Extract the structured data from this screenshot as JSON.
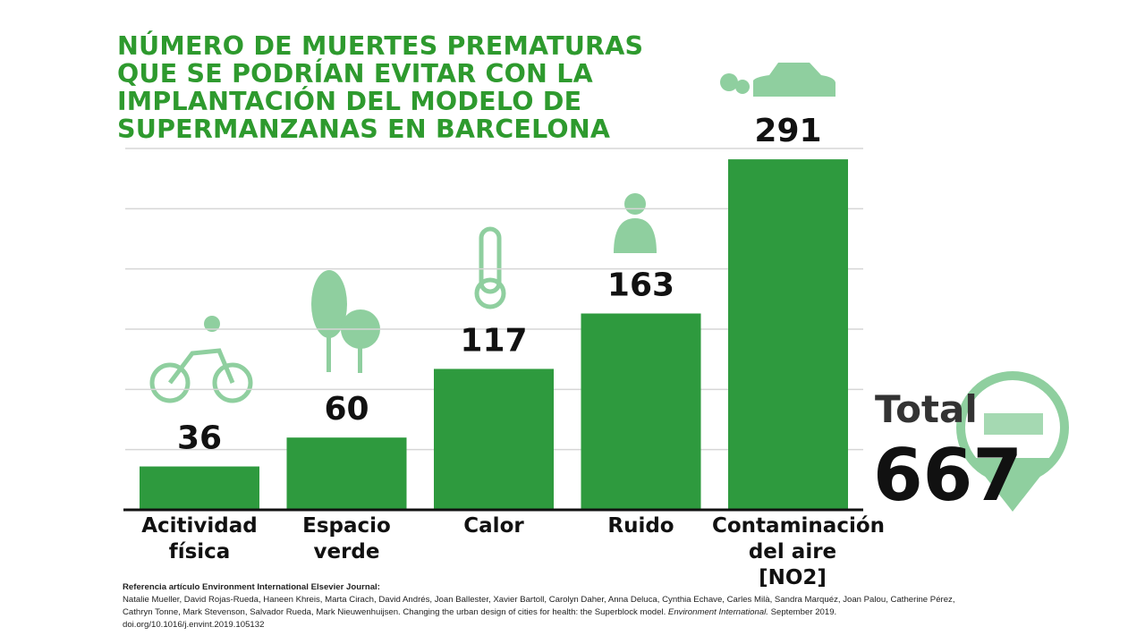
{
  "chart_data": {
    "type": "bar",
    "title": "NÚMERO DE MUERTES PREMATURAS\nQUE SE PODRÍAN EVITAR CON LA\nIMPLANTACIÓN DEL MODELO DE\nSUPERMANZANAS  EN BARCELONA",
    "categories": [
      "Acitividad\nfísica",
      "Espacio\nverde",
      "Calor",
      "Ruido",
      "Contaminación\ndel aire\n[NO2]"
    ],
    "values": [
      36,
      60,
      117,
      163,
      291
    ],
    "color": "#2e9a3e",
    "ylim": [
      0,
      300
    ],
    "yticks": [
      0,
      50,
      100,
      150,
      200,
      250,
      300
    ],
    "grid": true,
    "total_label": "Total",
    "total_value": 667,
    "source_heading": "Referencia artículo Environment  International  Elsevier Journal:",
    "source_text": "Natalie Mueller, David Rojas-Rueda, Haneen Khreis, Marta Cirach, David Andrés, Joan Ballester, Xavier Bartoll, Carolyn Daher, Anna Deluca, Cynthia Echave, Carles Milà, Sandra Marquéz, Joan Palou, Catherine Pérez, Cathryn Tonne, Mark Stevenson, Salvador Rueda, Mark Nieuwenhuijsen. Changing the urban design of cities for health: the Superblock model.",
    "source_journal": "Environment International.",
    "source_tail": "September 2019.  doi.org/10.1016/j.envint.2019.105132"
  }
}
